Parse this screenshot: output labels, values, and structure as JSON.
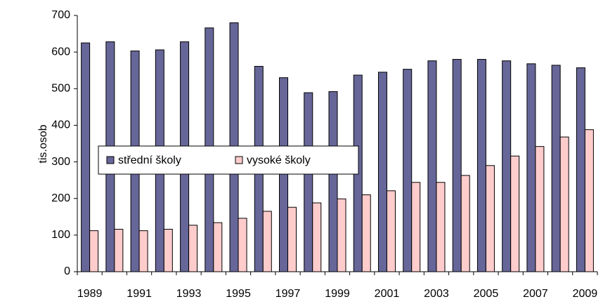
{
  "chart_data": {
    "type": "bar",
    "ylabel": "tis.osob",
    "categories": [
      "1989",
      null,
      "1991",
      null,
      "1993",
      null,
      "1995",
      null,
      "1997",
      null,
      "1999",
      null,
      "2001",
      null,
      "2003",
      null,
      "2005",
      null,
      "2007",
      null,
      "2009"
    ],
    "series": [
      {
        "name": "střední školy",
        "color": "#666699",
        "values": [
          625,
          628,
          603,
          606,
          628,
          666,
          680,
          561,
          530,
          489,
          492,
          537,
          545,
          553,
          576,
          580,
          580,
          576,
          568,
          564,
          557
        ]
      },
      {
        "name": "vysoké školy",
        "color": "#ffcccc",
        "values": [
          112,
          116,
          112,
          116,
          127,
          134,
          146,
          165,
          176,
          188,
          199,
          210,
          221,
          244,
          244,
          263,
          290,
          316,
          342,
          368,
          388
        ]
      }
    ],
    "ylim": [
      0,
      700
    ],
    "yticks": [
      0,
      100,
      200,
      300,
      400,
      500,
      600,
      700
    ],
    "grid": false
  }
}
